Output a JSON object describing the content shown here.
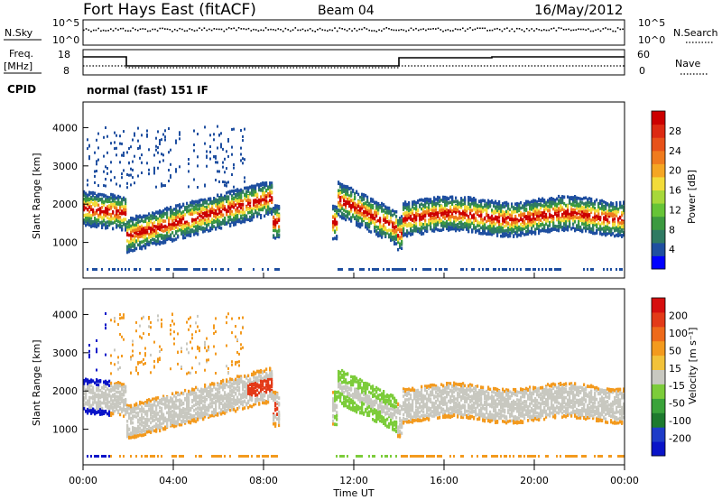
{
  "header": {
    "station": "Fort Hays East (fitACF)",
    "beam": "Beam 04",
    "date": "16/May/2012"
  },
  "param_panels": {
    "noise_left": "N.Sky",
    "noise_right": "N.Search",
    "noise_ticks_left": [
      "10^5",
      "10^0"
    ],
    "noise_ticks_right": [
      "10^5",
      "10^0"
    ],
    "freq_left_1": "Freq.",
    "freq_left_2": "[MHz]",
    "freq_ticks": [
      "18",
      "8"
    ],
    "nave_right": "Nave",
    "nave_ticks": [
      "60",
      "0"
    ],
    "cpid_label": "CPID",
    "cpid_text": "normal (fast) 151 IF"
  },
  "chart_data": [
    {
      "type": "heatmap",
      "name": "power",
      "ylabel": "Slant Range [km]",
      "yticks": [
        "4000",
        "3000",
        "2000",
        "1000"
      ],
      "colorbar_label": "Power [dB]",
      "colorbar_ticks": [
        "28",
        "24",
        "20",
        "16",
        "12",
        "8",
        "4"
      ],
      "colors": [
        "#0000ff",
        "#1f4fa0",
        "#2f7a62",
        "#3c9a40",
        "#66c437",
        "#a7d83a",
        "#f2dc3a",
        "#f5a623",
        "#f07b1e",
        "#e8521a",
        "#dd2a12",
        "#cc0000"
      ]
    },
    {
      "type": "heatmap",
      "name": "velocity",
      "ylabel": "Slant Range [km]",
      "yticks": [
        "4000",
        "3000",
        "2000",
        "1000"
      ],
      "colorbar_label": "Velocity [m s⁻¹]",
      "colorbar_ticks": [
        "200",
        "100",
        "50",
        "15",
        "-15",
        "-50",
        "-100",
        "-200"
      ],
      "colors": [
        "#0a14c8",
        "#1e3cc8",
        "#1d7a2e",
        "#3aa33a",
        "#7ccc3a",
        "#c8c8c0",
        "#f2c23a",
        "#f39a1e",
        "#ee6a1a",
        "#e33a18",
        "#d60f0f"
      ]
    }
  ],
  "xaxis": {
    "ticks": [
      "00:00",
      "04:00",
      "08:00",
      "12:00",
      "16:00",
      "20:00",
      "00:00"
    ],
    "label": "Time UT"
  }
}
